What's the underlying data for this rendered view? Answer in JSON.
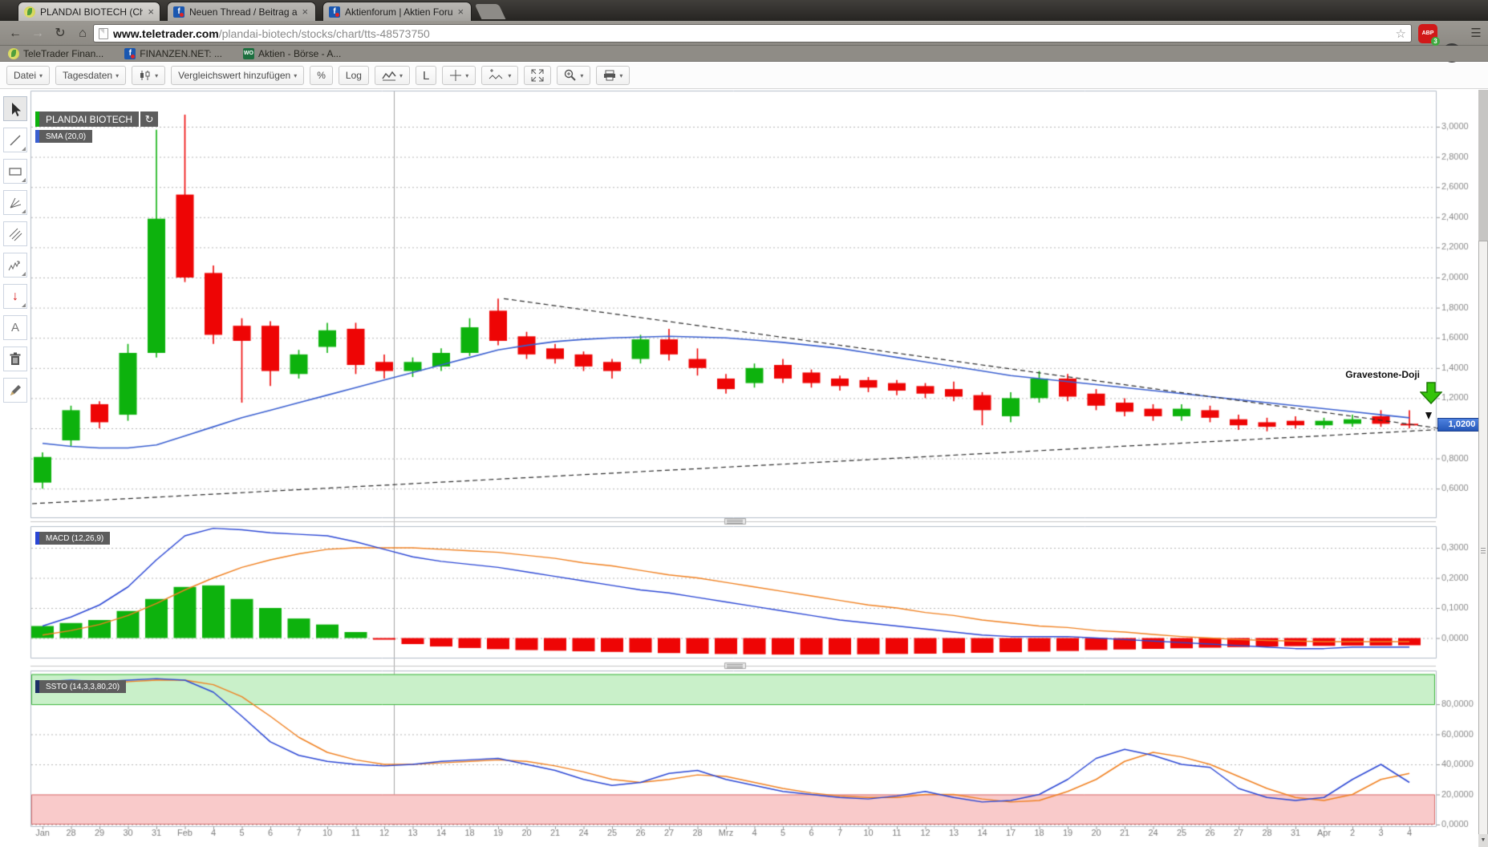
{
  "glyphs": {
    "caret": "▾",
    "close": "×",
    "back": "←",
    "forward": "→",
    "reload": "↻",
    "home": "⌂",
    "star": "☆",
    "menu": "☰",
    "refresh": "↻",
    "down_btn": "▼",
    "text_tool": "A",
    "arrow_down": "↓",
    "wo": "WO",
    "fin_f": "f"
  },
  "browser": {
    "tabs": [
      {
        "title": "PLANDAI BIOTECH (Chart)"
      },
      {
        "title": "Neuen Thread / Beitrag a"
      },
      {
        "title": "Aktienforum | Aktien Foru"
      }
    ],
    "url_host": "www.teletrader.com",
    "url_path": "/plandai-biotech/stocks/chart/tts-48573750",
    "adblock_label": "ABP",
    "adblock_count": "3",
    "bookmarks": [
      {
        "label": "TeleTrader Finan..."
      },
      {
        "label": "FINANZEN.NET: ..."
      },
      {
        "label": "Aktien - Börse - A..."
      }
    ]
  },
  "toolbar": {
    "file": "Datei",
    "period": "Tagesdaten",
    "compare": "Vergleichswert hinzufügen",
    "percent": "%",
    "log": "Log",
    "linear": "L"
  },
  "chart": {
    "symbol_label": "PLANDAI BIOTECH",
    "sma_label": "SMA (20,0)",
    "macd_label": "MACD (12,26,9)",
    "ssto_label": "SSTO (14,3,3,80,20)",
    "annotation": "Gravestone-Doji",
    "last_price": "1,0200"
  },
  "chart_data": {
    "type": "candlestick+indicators",
    "title": "PLANDAI BIOTECH",
    "indicators": [
      "SMA (20,0)",
      "MACD (12,26,9)",
      "SSTO (14,3,3,80,20)"
    ],
    "annotation": "Gravestone-Doji",
    "last_price": 1.02,
    "x_labels": [
      "Jan",
      "28",
      "29",
      "30",
      "31",
      "Feb",
      "4",
      "5",
      "6",
      "7",
      "10",
      "11",
      "12",
      "13",
      "14",
      "18",
      "19",
      "20",
      "21",
      "24",
      "25",
      "26",
      "27",
      "28",
      "Mrz",
      "4",
      "5",
      "6",
      "7",
      "10",
      "11",
      "12",
      "13",
      "14",
      "17",
      "18",
      "19",
      "20",
      "21",
      "24",
      "25",
      "26",
      "27",
      "28",
      "31",
      "Apr",
      "2",
      "3",
      "4"
    ],
    "price_ticks": [
      {
        "v": 3.0,
        "label": "3,0000"
      },
      {
        "v": 2.8,
        "label": "2,8000"
      },
      {
        "v": 2.6,
        "label": "2,6000"
      },
      {
        "v": 2.4,
        "label": "2,4000"
      },
      {
        "v": 2.2,
        "label": "2,2000"
      },
      {
        "v": 2.0,
        "label": "2,0000"
      },
      {
        "v": 1.8,
        "label": "1,8000"
      },
      {
        "v": 1.6,
        "label": "1,6000"
      },
      {
        "v": 1.4,
        "label": "1,4000"
      },
      {
        "v": 1.2,
        "label": "1,2000"
      },
      {
        "v": 1.0,
        "label": ""
      },
      {
        "v": 0.8,
        "label": "0,8000"
      },
      {
        "v": 0.6,
        "label": "0,6000"
      }
    ],
    "candles": [
      [
        0.64,
        0.84,
        0.6,
        0.81
      ],
      [
        0.92,
        1.15,
        0.88,
        1.12
      ],
      [
        1.16,
        1.18,
        1.0,
        1.04
      ],
      [
        1.09,
        1.56,
        1.05,
        1.5
      ],
      [
        1.5,
        2.98,
        1.47,
        2.39
      ],
      [
        2.55,
        3.08,
        1.97,
        2.0
      ],
      [
        2.03,
        2.08,
        1.56,
        1.62
      ],
      [
        1.68,
        1.73,
        1.17,
        1.58
      ],
      [
        1.68,
        1.71,
        1.28,
        1.38
      ],
      [
        1.36,
        1.52,
        1.33,
        1.49
      ],
      [
        1.54,
        1.7,
        1.5,
        1.65
      ],
      [
        1.66,
        1.7,
        1.36,
        1.42
      ],
      [
        1.44,
        1.49,
        1.33,
        1.38
      ],
      [
        1.38,
        1.47,
        1.34,
        1.44
      ],
      [
        1.41,
        1.53,
        1.38,
        1.5
      ],
      [
        1.5,
        1.73,
        1.48,
        1.67
      ],
      [
        1.78,
        1.86,
        1.55,
        1.58
      ],
      [
        1.61,
        1.64,
        1.46,
        1.49
      ],
      [
        1.53,
        1.56,
        1.43,
        1.46
      ],
      [
        1.49,
        1.51,
        1.38,
        1.41
      ],
      [
        1.44,
        1.46,
        1.33,
        1.38
      ],
      [
        1.46,
        1.62,
        1.43,
        1.59
      ],
      [
        1.59,
        1.66,
        1.45,
        1.49
      ],
      [
        1.46,
        1.53,
        1.35,
        1.4
      ],
      [
        1.33,
        1.36,
        1.23,
        1.26
      ],
      [
        1.3,
        1.43,
        1.27,
        1.4
      ],
      [
        1.42,
        1.46,
        1.3,
        1.33
      ],
      [
        1.37,
        1.39,
        1.27,
        1.3
      ],
      [
        1.33,
        1.35,
        1.25,
        1.28
      ],
      [
        1.32,
        1.34,
        1.24,
        1.27
      ],
      [
        1.3,
        1.32,
        1.22,
        1.25
      ],
      [
        1.28,
        1.3,
        1.2,
        1.23
      ],
      [
        1.26,
        1.31,
        1.18,
        1.21
      ],
      [
        1.22,
        1.24,
        1.02,
        1.12
      ],
      [
        1.08,
        1.24,
        1.04,
        1.2
      ],
      [
        1.2,
        1.38,
        1.17,
        1.33
      ],
      [
        1.33,
        1.36,
        1.18,
        1.21
      ],
      [
        1.23,
        1.26,
        1.12,
        1.15
      ],
      [
        1.17,
        1.2,
        1.08,
        1.11
      ],
      [
        1.13,
        1.16,
        1.05,
        1.08
      ],
      [
        1.08,
        1.16,
        1.05,
        1.13
      ],
      [
        1.12,
        1.15,
        1.04,
        1.07
      ],
      [
        1.06,
        1.09,
        0.99,
        1.02
      ],
      [
        1.04,
        1.07,
        0.98,
        1.01
      ],
      [
        1.05,
        1.08,
        1.0,
        1.02
      ],
      [
        1.02,
        1.07,
        1.0,
        1.05
      ],
      [
        1.03,
        1.09,
        1.01,
        1.06
      ],
      [
        1.08,
        1.12,
        1.01,
        1.03
      ],
      [
        1.03,
        1.12,
        1.0,
        1.02
      ]
    ],
    "sma20": [
      0.9,
      0.88,
      0.87,
      0.87,
      0.89,
      0.95,
      1.01,
      1.07,
      1.12,
      1.17,
      1.22,
      1.27,
      1.32,
      1.37,
      1.42,
      1.47,
      1.52,
      1.55,
      1.575,
      1.59,
      1.6,
      1.605,
      1.61,
      1.605,
      1.6,
      1.585,
      1.57,
      1.55,
      1.53,
      1.5,
      1.47,
      1.44,
      1.41,
      1.38,
      1.35,
      1.33,
      1.31,
      1.29,
      1.27,
      1.25,
      1.23,
      1.21,
      1.19,
      1.17,
      1.15,
      1.13,
      1.11,
      1.09,
      1.07
    ],
    "trendlines": [
      {
        "i1": 16.2,
        "p1": 1.86,
        "i2": 49.2,
        "p2": 1.0
      },
      {
        "i1": -0.4,
        "p1": 0.5,
        "i2": 48.9,
        "p2": 0.99
      }
    ],
    "macd": {
      "ticks": [
        {
          "v": 0.3,
          "label": "0,3000"
        },
        {
          "v": 0.2,
          "label": "0,2000"
        },
        {
          "v": 0.1,
          "label": "0,1000"
        },
        {
          "v": 0.0,
          "label": "0,0000"
        }
      ],
      "line": [
        0.04,
        0.07,
        0.11,
        0.17,
        0.26,
        0.34,
        0.365,
        0.36,
        0.35,
        0.345,
        0.34,
        0.32,
        0.295,
        0.27,
        0.255,
        0.245,
        0.235,
        0.22,
        0.205,
        0.19,
        0.175,
        0.16,
        0.15,
        0.135,
        0.12,
        0.105,
        0.09,
        0.075,
        0.06,
        0.05,
        0.04,
        0.03,
        0.02,
        0.01,
        0.005,
        0.005,
        0.005,
        0.0,
        -0.005,
        -0.01,
        -0.015,
        -0.02,
        -0.025,
        -0.03,
        -0.035,
        -0.035,
        -0.03,
        -0.03,
        -0.03
      ],
      "signal": [
        0.01,
        0.025,
        0.045,
        0.075,
        0.115,
        0.16,
        0.2,
        0.235,
        0.26,
        0.28,
        0.295,
        0.3,
        0.3,
        0.3,
        0.295,
        0.29,
        0.285,
        0.275,
        0.265,
        0.25,
        0.24,
        0.225,
        0.21,
        0.2,
        0.185,
        0.17,
        0.155,
        0.14,
        0.125,
        0.11,
        0.1,
        0.085,
        0.075,
        0.06,
        0.05,
        0.04,
        0.035,
        0.025,
        0.02,
        0.012,
        0.005,
        0.0,
        -0.005,
        -0.008,
        -0.01,
        -0.012,
        -0.012,
        -0.012,
        -0.012
      ],
      "hist": [
        0.04,
        0.05,
        0.06,
        0.09,
        0.13,
        0.17,
        0.175,
        0.13,
        0.1,
        0.065,
        0.045,
        0.02,
        -0.005,
        -0.02,
        -0.028,
        -0.033,
        -0.037,
        -0.04,
        -0.042,
        -0.044,
        -0.046,
        -0.048,
        -0.05,
        -0.052,
        -0.053,
        -0.054,
        -0.055,
        -0.055,
        -0.055,
        -0.054,
        -0.053,
        -0.052,
        -0.05,
        -0.049,
        -0.047,
        -0.045,
        -0.043,
        -0.04,
        -0.038,
        -0.036,
        -0.034,
        -0.032,
        -0.03,
        -0.028,
        -0.027,
        -0.026,
        -0.025,
        -0.025,
        -0.024
      ]
    },
    "ssto": {
      "ticks": [
        {
          "v": 80,
          "label": "80,0000"
        },
        {
          "v": 60,
          "label": "60,0000"
        },
        {
          "v": 40,
          "label": "40,0000"
        },
        {
          "v": 20,
          "label": "20,0000"
        },
        {
          "v": 0,
          "label": "0,0000"
        }
      ],
      "upper_band": [
        80,
        100
      ],
      "lower_band": [
        0,
        20
      ],
      "k": [
        95,
        96,
        95,
        96,
        97,
        96,
        88,
        72,
        55,
        46,
        42,
        40,
        39,
        40,
        42,
        43,
        44,
        40,
        36,
        30,
        26,
        28,
        34,
        36,
        30,
        26,
        22,
        20,
        18,
        17,
        19,
        22,
        18,
        15,
        16,
        20,
        30,
        44,
        50,
        46,
        40,
        38,
        24,
        18,
        16,
        18,
        30,
        40,
        28
      ],
      "d": [
        92,
        94,
        95,
        95,
        96,
        96,
        93,
        85,
        72,
        58,
        48,
        43,
        40,
        40,
        41,
        42,
        43,
        42,
        39,
        35,
        30,
        28,
        30,
        33,
        32,
        28,
        24,
        21,
        19,
        18,
        18,
        20,
        20,
        17,
        15,
        16,
        22,
        30,
        42,
        48,
        45,
        40,
        32,
        24,
        18,
        16,
        20,
        30,
        34
      ]
    },
    "colors": {
      "up": "#0db20d",
      "down": "#ee0505",
      "sma": "#3a5fd0",
      "macd_line": "#2a46d4",
      "macd_signal": "#f08020",
      "ssto_k": "#2a46d4",
      "ssto_d": "#f08020",
      "band_up": "#c9f0c9",
      "band_dn": "#f9caca",
      "price_badge": "#2e62c8"
    }
  }
}
